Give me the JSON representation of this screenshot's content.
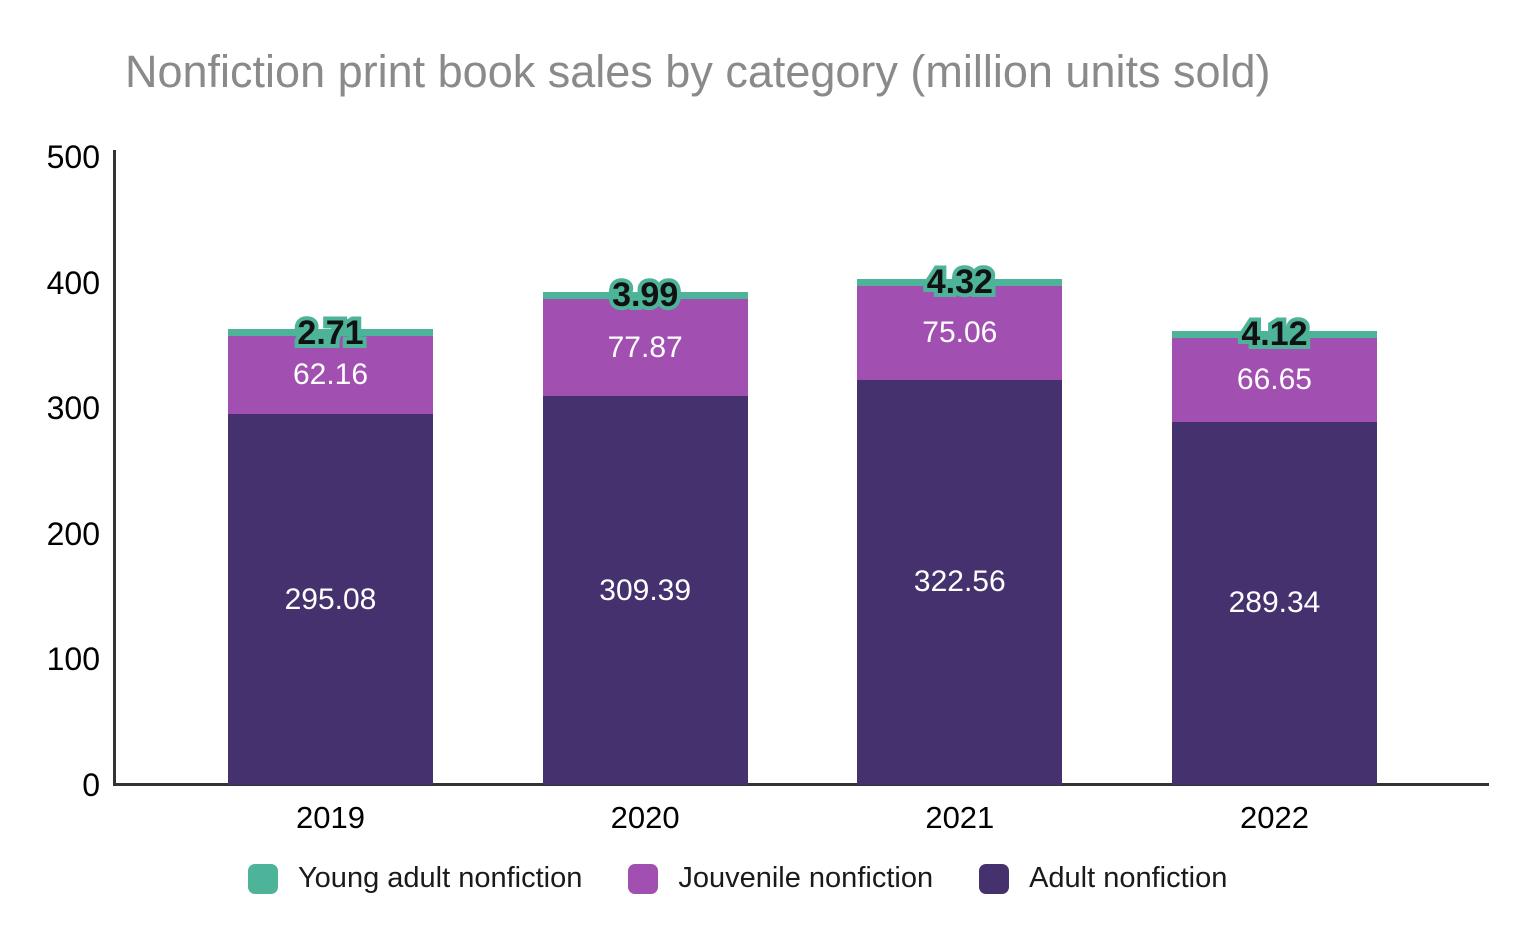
{
  "chart_data": {
    "type": "bar",
    "stacked": true,
    "title": "Nonfiction print book sales by category (million units sold)",
    "categories": [
      "2019",
      "2020",
      "2021",
      "2022"
    ],
    "series": [
      {
        "name": "Adult nonfiction",
        "color": "#45316e",
        "values": [
          295.08,
          309.39,
          322.56,
          289.34
        ],
        "label_style": "inside-white"
      },
      {
        "name": "Jouvenile nonfiction",
        "color": "#a14fb0",
        "values": [
          62.16,
          77.87,
          75.06,
          66.65
        ],
        "label_style": "inside-white"
      },
      {
        "name": "Young adult nonfiction",
        "color": "#4db399",
        "values": [
          2.71,
          3.99,
          4.32,
          4.12
        ],
        "label_style": "outlined-top"
      }
    ],
    "xlabel": "",
    "ylabel": "",
    "ylim": [
      0,
      500
    ],
    "yticks": [
      0,
      100,
      200,
      300,
      400,
      500
    ],
    "grid": false,
    "legend": {
      "position": "bottom",
      "items": [
        {
          "label": "Young adult nonfiction",
          "color": "#4db399"
        },
        {
          "label": "Jouvenile nonfiction",
          "color": "#a14fb0"
        },
        {
          "label": "Adult nonfiction",
          "color": "#45316e"
        }
      ]
    }
  },
  "colors": {
    "title_text": "#8a8a8a",
    "axis": "#333333",
    "tick_text": "#000000",
    "bar_value_text": "#ffffff",
    "outline_label_fill": "#111111"
  }
}
